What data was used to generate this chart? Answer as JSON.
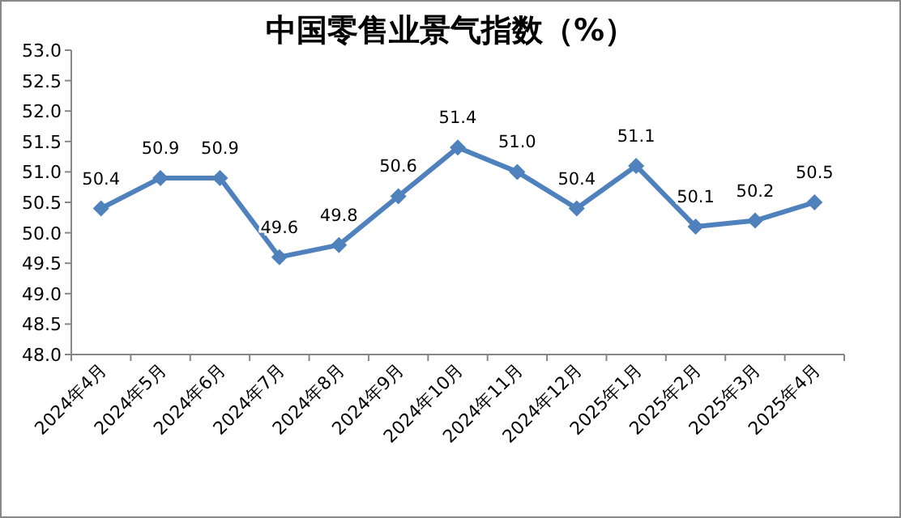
{
  "chart_data": {
    "type": "line",
    "title": "中国零售业景气指数（%）",
    "categories": [
      "2024年4月",
      "2024年5月",
      "2024年6月",
      "2024年7月",
      "2024年8月",
      "2024年9月",
      "2024年10月",
      "2024年11月",
      "2024年12月",
      "2025年1月",
      "2025年2月",
      "2025年3月",
      "2025年4月"
    ],
    "series": [
      {
        "color": "#4f81bd",
        "values": [
          50.4,
          50.9,
          50.9,
          49.6,
          49.8,
          50.6,
          51.4,
          51.0,
          50.4,
          51.1,
          50.1,
          50.2,
          50.5
        ]
      }
    ],
    "ylim": [
      48.0,
      53.0
    ],
    "yticks": [
      {
        "value": 48,
        "label": "48.0"
      },
      {
        "value": 48.5,
        "label": "48.5"
      },
      {
        "value": 49,
        "label": "49.0"
      },
      {
        "value": 49.5,
        "label": "49.5"
      },
      {
        "value": 50,
        "label": "50.0"
      },
      {
        "value": 50.5,
        "label": "50.5"
      },
      {
        "value": 51,
        "label": "51.0"
      },
      {
        "value": 51.5,
        "label": "51.5"
      },
      {
        "value": 52,
        "label": "52.0"
      },
      {
        "value": 52.5,
        "label": "52.5"
      },
      {
        "value": 53,
        "label": "53.0"
      }
    ],
    "value_labels": [
      "50.4",
      "50.9",
      "50.9",
      "49.6",
      "49.8",
      "50.6",
      "51.4",
      "51.0",
      "50.4",
      "51.1",
      "50.1",
      "50.2",
      "50.5"
    ],
    "marker": "diamond",
    "grid": false
  }
}
